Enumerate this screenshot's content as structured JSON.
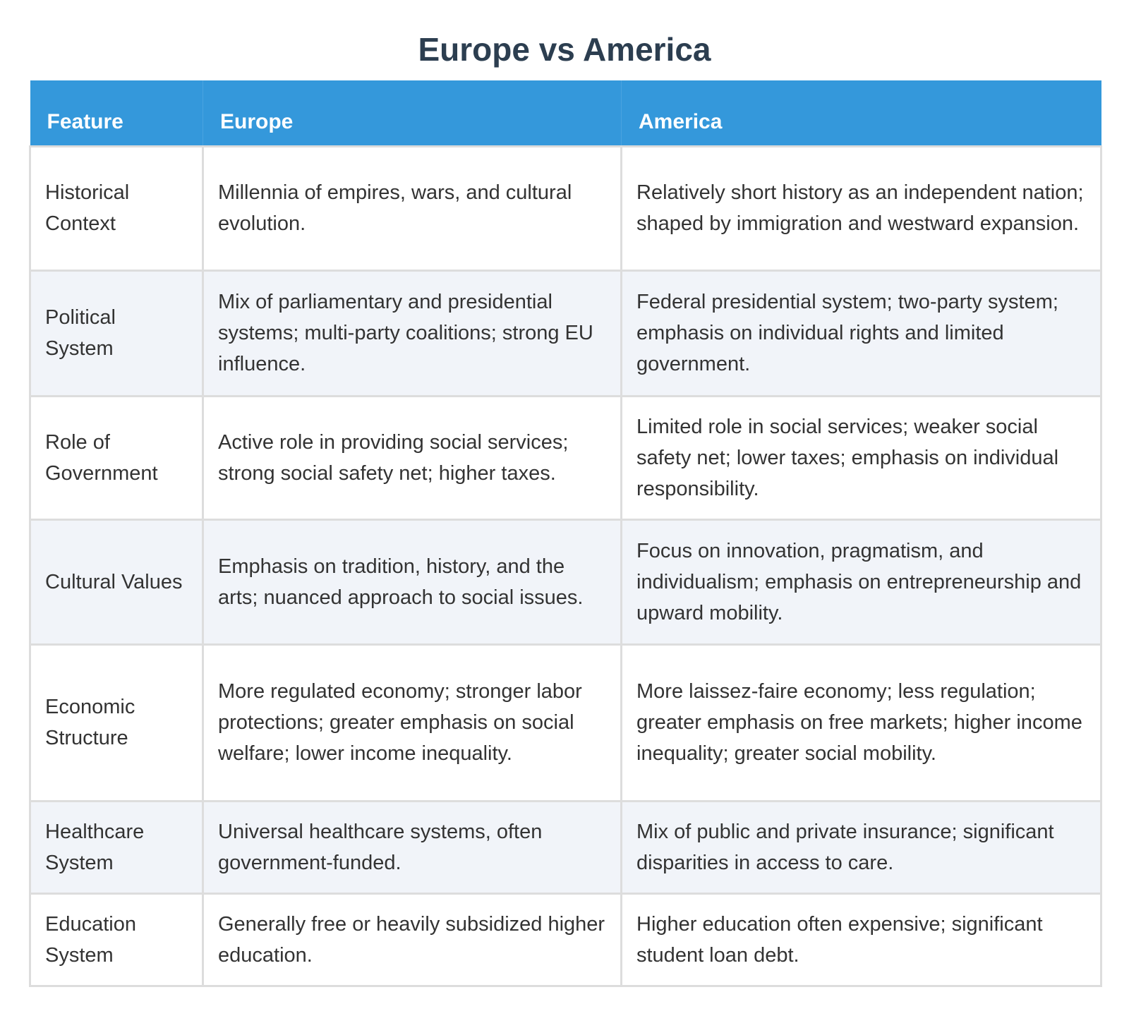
{
  "title": "Europe vs America",
  "colors": {
    "title": "#2c3e50",
    "header_bg": "#3498db",
    "header_text": "#ffffff",
    "alt_row_bg": "#f1f4f9",
    "border": "#dddddd",
    "body_text": "#333333"
  },
  "table": {
    "headers": [
      "Feature",
      "Europe",
      "America"
    ],
    "rows": [
      {
        "feature": "Historical Context",
        "europe": "Millennia of empires, wars, and cultural evolution.",
        "america": "Relatively short history as an independent nation; shaped by immigration and westward expansion."
      },
      {
        "feature": "Political System",
        "europe": "Mix of parliamentary and presidential systems; multi-party coalitions; strong EU influence.",
        "america": "Federal presidential system; two-party system; emphasis on individual rights and limited government."
      },
      {
        "feature": "Role of Government",
        "europe": "Active role in providing social services; strong social safety net; higher taxes.",
        "america": "Limited role in social services; weaker social safety net; lower taxes; emphasis on individual responsibility."
      },
      {
        "feature": "Cultural Values",
        "europe": "Emphasis on tradition, history, and the arts; nuanced approach to social issues.",
        "america": "Focus on innovation, pragmatism, and individualism; emphasis on entrepreneurship and upward mobility."
      },
      {
        "feature": "Economic Structure",
        "europe": "More regulated economy; stronger labor protections; greater emphasis on social welfare; lower income inequality.",
        "america": "More laissez-faire economy; less regulation; greater emphasis on free markets; higher income inequality; greater social mobility."
      },
      {
        "feature": "Healthcare System",
        "europe": "Universal healthcare systems, often government-funded.",
        "america": "Mix of public and private insurance; significant disparities in access to care."
      },
      {
        "feature": "Education System",
        "europe": "Generally free or heavily subsidized higher education.",
        "america": "Higher education often expensive; significant student loan debt."
      }
    ]
  }
}
